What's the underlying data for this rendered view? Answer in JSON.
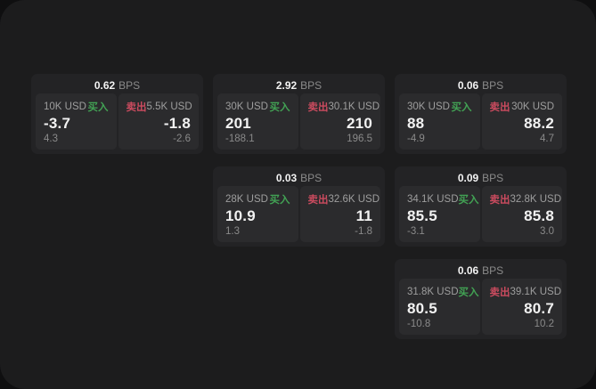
{
  "colors": {
    "page_bg": "#0f0f10",
    "panel_bg": "#1c1c1d",
    "card_bg": "#232325",
    "tile_bg": "#2b2b2d",
    "text_primary": "#f2f2f2",
    "text_secondary": "#9e9e9e",
    "text_muted": "#8a8a8a",
    "buy_green": "#42a254",
    "sell_red": "#cb4b5f"
  },
  "labels": {
    "bps_unit": "BPS",
    "buy": "买入",
    "sell": "卖出"
  },
  "cards": [
    {
      "bps": "0.62",
      "buy": {
        "size": "10K USD",
        "price": "-3.7",
        "delta": "4.3"
      },
      "sell": {
        "size": "5.5K USD",
        "price": "-1.8",
        "delta": "-2.6"
      }
    },
    {
      "bps": "2.92",
      "buy": {
        "size": "30K USD",
        "price": "201",
        "delta": "-188.1"
      },
      "sell": {
        "size": "30.1K USD",
        "price": "210",
        "delta": "196.5"
      }
    },
    {
      "bps": "0.06",
      "buy": {
        "size": "30K USD",
        "price": "88",
        "delta": "-4.9"
      },
      "sell": {
        "size": "30K USD",
        "price": "88.2",
        "delta": "4.7"
      }
    },
    {
      "bps": "0.03",
      "buy": {
        "size": "28K USD",
        "price": "10.9",
        "delta": "1.3"
      },
      "sell": {
        "size": "32.6K USD",
        "price": "11",
        "delta": "-1.8"
      }
    },
    {
      "bps": "0.09",
      "buy": {
        "size": "34.1K USD",
        "price": "85.5",
        "delta": "-3.1"
      },
      "sell": {
        "size": "32.8K USD",
        "price": "85.8",
        "delta": "3.0"
      }
    },
    {
      "bps": "0.06",
      "buy": {
        "size": "31.8K USD",
        "price": "80.5",
        "delta": "-10.8"
      },
      "sell": {
        "size": "39.1K USD",
        "price": "80.7",
        "delta": "10.2"
      }
    }
  ]
}
